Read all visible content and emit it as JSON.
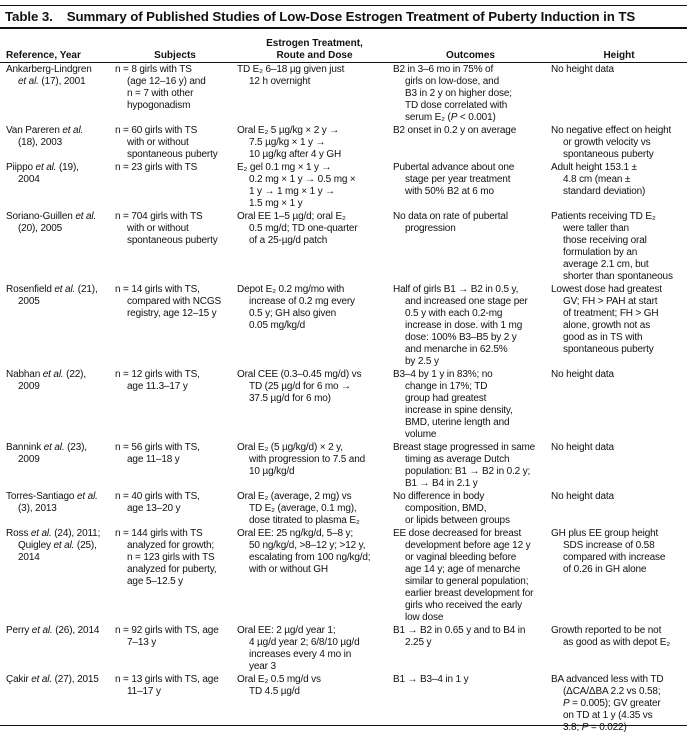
{
  "table": {
    "number": "Table 3.",
    "title": "Summary of Published Studies of Low-Dose Estrogen Treatment of Puberty Induction in TS",
    "headers": {
      "reference": "Reference, Year",
      "subjects": "Subjects",
      "treatment_line1": "Estrogen Treatment,",
      "treatment_line2": "Route and Dose",
      "outcomes": "Outcomes",
      "height": "Height"
    },
    "rows": [
      {
        "lines": 5,
        "reference": [
          "Ankarberg-Lindgren",
          "et al. (17), 2001"
        ],
        "subjects": [
          "n = 8 girls with TS",
          "(age 12–16 y) and",
          "n = 7 with other",
          "hypogonadism"
        ],
        "treatment": [
          "TD E₂ 6–18 µg given just",
          "12 h overnight"
        ],
        "outcomes": [
          "B2 in 3–6 mo in 75% of",
          "girls on low-dose, and",
          "B3 in 2 y on higher dose;",
          "TD dose correlated with",
          "serum E₂ (P < 0.001)"
        ],
        "height": [
          "No height data"
        ]
      },
      {
        "lines": 3,
        "reference": [
          "Van Pareren et al.",
          "(18), 2003"
        ],
        "subjects": [
          "n = 60 girls with TS",
          "with or without",
          "spontaneous puberty"
        ],
        "treatment": [
          "Oral E₂ 5 µg/kg × 2 y →",
          "7.5 µg/kg × 1 y →",
          "10 µg/kg after 4 y GH"
        ],
        "outcomes": [
          "B2 onset in 0.2 y on average"
        ],
        "height": [
          "No negative effect on height",
          "or growth velocity vs",
          "spontaneous puberty"
        ]
      },
      {
        "lines": 4,
        "reference": [
          "Piippo et al. (19),",
          "2004"
        ],
        "subjects": [
          "n = 23 girls with TS"
        ],
        "treatment": [
          "E₂ gel 0.1 mg × 1 y →",
          "0.2 mg × 1 y → 0.5 mg ×",
          "1 y → 1 mg × 1 y →",
          "1.5 mg × 1 y"
        ],
        "outcomes": [
          "Pubertal advance about one",
          "stage per year treatment",
          "with 50% B2 at 6 mo"
        ],
        "height": [
          "Adult height 153.1 ±",
          "4.8 cm (mean ±",
          "standard deviation)"
        ]
      },
      {
        "lines": 6,
        "reference": [
          "Soriano-Guillen et al.",
          "(20), 2005"
        ],
        "subjects": [
          "n = 704 girls with TS",
          "with or without",
          "spontaneous puberty"
        ],
        "treatment": [
          "Oral EE 1–5 µg/d; oral E₂",
          "0.5 mg/d; TD one-quarter",
          "of a 25-µg/d patch"
        ],
        "outcomes": [
          "No data on rate of pubertal",
          "progression"
        ],
        "height": [
          "Patients receiving TD E₂",
          "were taller than",
          "those receiving oral",
          "formulation by an",
          "average 2.1 cm, but",
          "shorter than spontaneous"
        ]
      },
      {
        "lines": 7,
        "reference": [
          "Rosenfield et al. (21),",
          "2005"
        ],
        "subjects": [
          "n = 14 girls with TS,",
          "compared with NCGS",
          "registry, age 12–15 y"
        ],
        "treatment": [
          "Depot E₂ 0.2 mg/mo with",
          "increase of 0.2 mg every",
          "0.5 y; GH also given",
          "0.05 mg/kg/d"
        ],
        "outcomes": [
          "Half of girls B1 → B2 in 0.5 y,",
          "and increased one stage per",
          "0.5 y with each 0.2-mg",
          "increase in dose. with 1 mg",
          "dose: 100% B3–B5 by 2 y",
          "and menarche in 62.5%",
          "by 2.5 y"
        ],
        "height": [
          "Lowest dose had greatest",
          "GV; FH > PAH at start",
          "of treatment; FH > GH",
          "alone, growth not as",
          "good as in TS with",
          "spontaneous puberty"
        ]
      },
      {
        "lines": 6,
        "reference": [
          "Nabhan et al. (22),",
          "2009"
        ],
        "subjects": [
          "n = 12 girls with TS,",
          "age 11.3–17 y"
        ],
        "treatment": [
          "Oral CEE (0.3–0.45 mg/d) vs",
          "TD (25 µg/d for 6 mo →",
          "37.5 µg/d for 6 mo)"
        ],
        "outcomes": [
          "B3–4 by 1 y in 83%; no",
          "change in 17%; TD",
          "group had greatest",
          "increase in spine density,",
          "BMD, uterine length and",
          "volume"
        ],
        "height": [
          "No height data"
        ]
      },
      {
        "lines": 4,
        "reference": [
          "Bannink et al. (23),",
          "2009"
        ],
        "subjects": [
          "n = 56 girls with TS,",
          "age 11–18 y"
        ],
        "treatment": [
          "Oral E₂ (5 µg/kg/d) × 2 y,",
          "with progression to 7.5 and",
          "10 µg/kg/d"
        ],
        "outcomes": [
          "Breast stage progressed in same",
          "timing as average Dutch",
          "population: B1 → B2 in 0.2 y;",
          "B1 → B4 in 2.1 y"
        ],
        "height": [
          "No height data"
        ]
      },
      {
        "lines": 3,
        "reference": [
          "Torres-Santiago et al.",
          "(3), 2013"
        ],
        "subjects": [
          "n = 40 girls with TS,",
          "age 13–20 y"
        ],
        "treatment": [
          "Oral E₂ (average, 2 mg) vs",
          "TD E₂ (average, 0.1 mg),",
          "dose titrated to plasma E₂"
        ],
        "outcomes": [
          "No difference in body",
          "composition, BMD,",
          "or lipids between groups"
        ],
        "height": [
          "No height data"
        ]
      },
      {
        "lines": 7,
        "reference": [
          "Ross et al. (24), 2011;",
          "Quigley et al. (25),",
          "2014"
        ],
        "subjects": [
          "n = 144 girls with TS",
          "analyzed for growth;",
          "n = 123 girls with TS",
          "analyzed for puberty,",
          "age 5–12.5 y"
        ],
        "treatment": [
          "Oral EE: 25 ng/kg/d, 5–8 y;",
          "50 ng/kg/d, >8–12 y; >12 y,",
          "escalating from 100 ng/kg/d;",
          "with or without GH"
        ],
        "outcomes": [
          "EE dose decreased for breast",
          "development before age 12 y",
          "or vaginal bleeding before",
          "age 14 y; age of menarche",
          "similar to general population;",
          "earlier breast development for",
          "girls who received the early",
          "low dose"
        ],
        "height": [
          "GH plus EE group height",
          "SDS increase of 0.58",
          "compared with increase",
          "of 0.26 in GH alone"
        ]
      },
      {
        "lines": 4,
        "reference": [
          "Perry et al. (26), 2014"
        ],
        "subjects": [
          "n = 92 girls with TS, age",
          "7–13 y"
        ],
        "treatment": [
          "Oral EE: 2 µg/d year 1;",
          "4 µg/d year 2; 6/8/10 µg/d",
          "increases every 4 mo in",
          "year 3"
        ],
        "outcomes": [
          "B1 → B2 in 0.65 y and to B4 in",
          "2.25 y"
        ],
        "height": [
          "Growth reported to be not",
          "as good as with depot E₂"
        ]
      },
      {
        "lines": 5,
        "reference": [
          "Çakir et al. (27), 2015"
        ],
        "subjects": [
          "n = 13 girls with TS, age",
          "11–17 y"
        ],
        "treatment": [
          "Oral E₂ 0.5 mg/d vs",
          "TD 4.5 µg/d"
        ],
        "outcomes": [
          "B1 → B3–4 in 1 y"
        ],
        "height": [
          "BA advanced less with TD",
          "(ΔCA/ΔBA 2.2 vs 0.58;",
          "P = 0.005); GV greater",
          "on TD at 1 y (4.35 vs",
          "3.8; P = 0.022)"
        ]
      }
    ]
  }
}
